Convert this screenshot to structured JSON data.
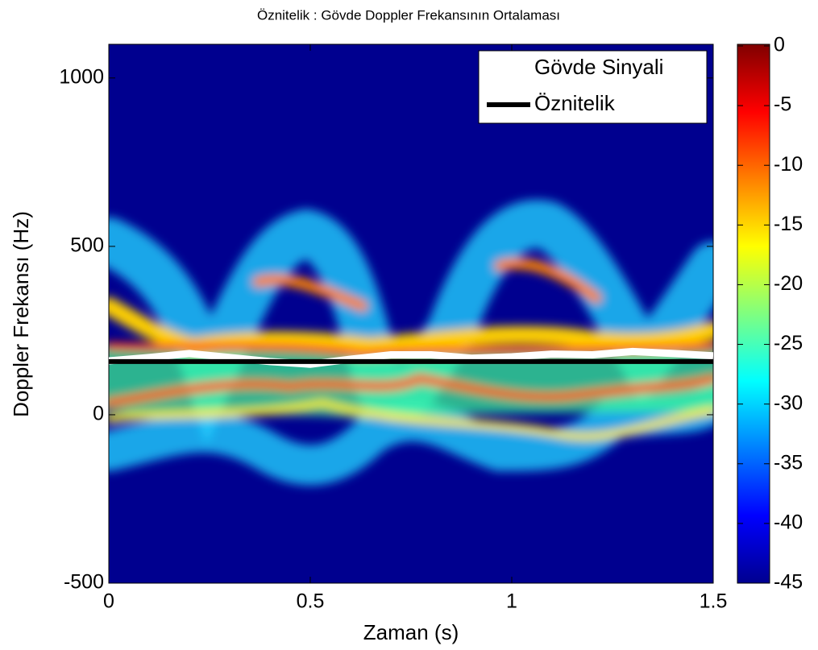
{
  "chart_data": {
    "type": "line",
    "title": "Öznitelik : Gövde Doppler Frekansının Ortalaması",
    "xlabel": "Zaman (s)",
    "ylabel": "Doppler Frekansı (Hz)",
    "xlim": [
      0,
      1.5
    ],
    "xticks": [
      0,
      0.5,
      1,
      1.5
    ],
    "ylim": [
      -500,
      1100
    ],
    "yticks": [
      -500,
      0,
      500,
      1000
    ],
    "legend": "upper right",
    "series": [
      {
        "name": "Gövde Sinyali",
        "color": "#ffffff",
        "x": [
          0,
          0.1,
          0.2,
          0.3,
          0.4,
          0.5,
          0.6,
          0.7,
          0.8,
          0.9,
          1.0,
          1.1,
          1.2,
          1.3,
          1.4,
          1.5
        ],
        "values": [
          160,
          170,
          182,
          170,
          158,
          150,
          165,
          178,
          178,
          168,
          172,
          180,
          178,
          188,
          182,
          175
        ]
      },
      {
        "name": "Öznitelik",
        "color": "#000000",
        "x": [
          0,
          1.5
        ],
        "values": [
          158,
          158
        ]
      }
    ],
    "colorbar": {
      "lim": [
        -45,
        0
      ],
      "ticks": [
        0,
        -5,
        -10,
        -15,
        -20,
        -25,
        -30,
        -35,
        -40,
        -45
      ]
    }
  }
}
